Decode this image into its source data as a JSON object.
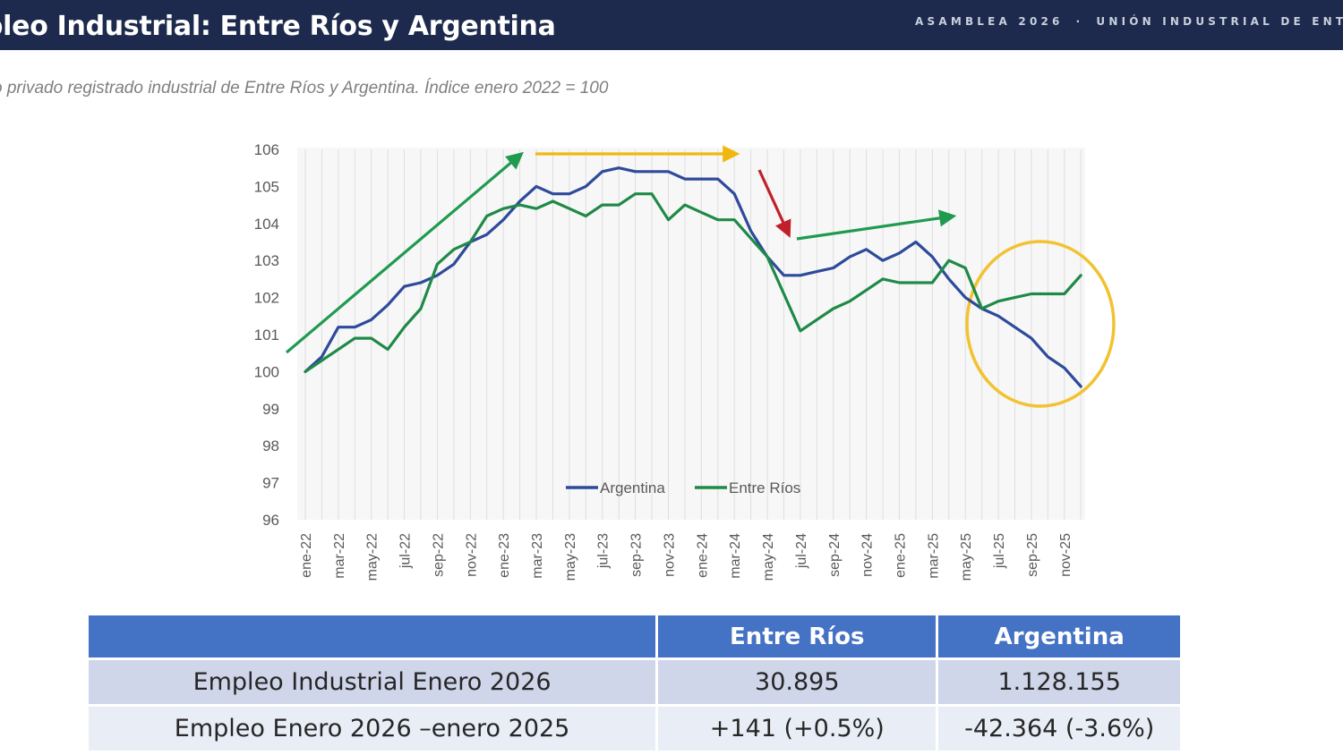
{
  "header": {
    "title": "pleo Industrial: Entre Ríos y Argentina",
    "event": "ASAMBLEA 2026",
    "separator": "·",
    "org": "UNIÓN INDUSTRIAL DE ENTR"
  },
  "subtitle": "o privado registrado industrial de Entre Ríos y Argentina. Índice enero 2022 = 100",
  "chart_data": {
    "type": "line",
    "ylim": [
      96,
      106
    ],
    "yticks": [
      96,
      97,
      98,
      99,
      100,
      101,
      102,
      103,
      104,
      105,
      106
    ],
    "xtick_labels": [
      "ene-22",
      "mar-22",
      "may-22",
      "jul-22",
      "sep-22",
      "nov-22",
      "ene-23",
      "mar-23",
      "may-23",
      "jul-23",
      "sep-23",
      "nov-23",
      "ene-24",
      "mar-24",
      "may-24",
      "jul-24",
      "sep-24",
      "nov-24",
      "ene-25",
      "mar-25",
      "may-25",
      "jul-25",
      "sep-25",
      "nov-25"
    ],
    "legend_position": "bottom-center",
    "grid": "vertical",
    "series": [
      {
        "name": "Argentina",
        "color": "#2e4a9a",
        "values": [
          100.0,
          100.4,
          101.2,
          101.2,
          101.4,
          101.8,
          102.3,
          102.4,
          102.6,
          102.9,
          103.5,
          103.7,
          104.1,
          104.6,
          105.0,
          104.8,
          104.8,
          105.0,
          105.4,
          105.5,
          105.4,
          105.4,
          105.4,
          105.2,
          105.2,
          105.2,
          104.8,
          103.8,
          103.1,
          102.6,
          102.6,
          102.7,
          102.8,
          103.1,
          103.3,
          103.0,
          103.2,
          103.5,
          103.1,
          102.5,
          102.0,
          101.7,
          101.5,
          101.2,
          100.9,
          100.4,
          100.1,
          99.6
        ]
      },
      {
        "name": "Entre Ríos",
        "color": "#1f8a47",
        "values": [
          100.0,
          100.3,
          100.6,
          100.9,
          100.9,
          100.6,
          101.2,
          101.7,
          102.9,
          103.3,
          103.5,
          104.2,
          104.4,
          104.5,
          104.4,
          104.6,
          104.4,
          104.2,
          104.5,
          104.5,
          104.8,
          104.8,
          104.1,
          104.5,
          104.3,
          104.1,
          104.1,
          103.6,
          103.1,
          102.1,
          101.1,
          101.4,
          101.7,
          101.9,
          102.2,
          102.5,
          102.4,
          102.4,
          102.4,
          103.0,
          102.8,
          101.7,
          101.9,
          102.0,
          102.1,
          102.1,
          102.1,
          102.6
        ]
      }
    ],
    "annotations": [
      {
        "type": "arrow",
        "color": "#1f9a4f"
      },
      {
        "type": "arrow",
        "color": "#f2b70f"
      },
      {
        "type": "arrow",
        "color": "#c0202a"
      },
      {
        "type": "arrow",
        "color": "#1f9a4f"
      },
      {
        "type": "ellipse",
        "color": "#f2c230"
      }
    ]
  },
  "table": {
    "headers": [
      "",
      "Entre Ríos",
      "Argentina"
    ],
    "rows": [
      [
        "Empleo Industrial Enero 2026",
        "30.895",
        "1.128.155"
      ],
      [
        "Empleo Enero 2026 –enero 2025",
        "+141  (+0.5%)",
        "-42.364   (-3.6%)"
      ]
    ]
  }
}
